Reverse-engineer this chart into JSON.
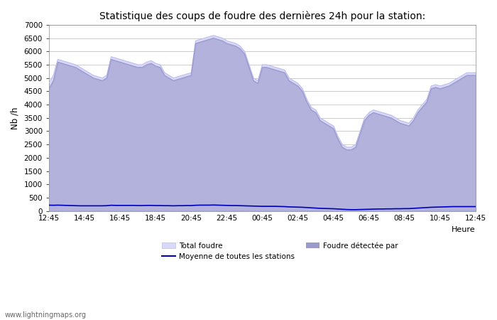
{
  "title": "Statistique des coups de foudre des dernières 24h pour la station:",
  "ylabel": "Nb /h",
  "xlabel": "Heure",
  "watermark": "www.lightningmaps.org",
  "xlim_labels": [
    "12:45",
    "14:45",
    "16:45",
    "18:45",
    "20:45",
    "22:45",
    "00:45",
    "02:45",
    "04:45",
    "06:45",
    "08:45",
    "10:45",
    "12:45"
  ],
  "ylim": [
    0,
    7000
  ],
  "yticks": [
    0,
    500,
    1000,
    1500,
    2000,
    2500,
    3000,
    3500,
    4000,
    4500,
    5000,
    5500,
    6000,
    6500,
    7000
  ],
  "total_foudre_color": "#d8d8f8",
  "total_foudre_edge": "#bbbbee",
  "foudre_detectee_color": "#9999cc",
  "moyenne_color": "#0000bb",
  "background_color": "#ffffff",
  "plot_bg_color": "#ffffff",
  "grid_color": "#cccccc",
  "num_points": 97,
  "total_foudre_y": [
    4800,
    5100,
    5700,
    5650,
    5600,
    5550,
    5500,
    5400,
    5300,
    5200,
    5100,
    5050,
    5000,
    5100,
    5800,
    5750,
    5700,
    5650,
    5600,
    5550,
    5500,
    5500,
    5600,
    5650,
    5550,
    5500,
    5200,
    5100,
    5000,
    5050,
    5100,
    5150,
    5200,
    6400,
    6450,
    6500,
    6550,
    6600,
    6550,
    6500,
    6400,
    6350,
    6300,
    6200,
    6000,
    5500,
    5000,
    4900,
    5500,
    5500,
    5450,
    5400,
    5350,
    5300,
    5000,
    4900,
    4800,
    4600,
    4200,
    3900,
    3800,
    3500,
    3400,
    3300,
    3200,
    2800,
    2500,
    2400,
    2400,
    2500,
    3000,
    3500,
    3700,
    3800,
    3750,
    3700,
    3650,
    3600,
    3500,
    3400,
    3350,
    3300,
    3500,
    3800,
    4000,
    4200,
    4700,
    4750,
    4700,
    4750,
    4800,
    4900,
    5000,
    5100,
    5200,
    5200,
    5200
  ],
  "foudre_detectee_y": [
    4600,
    4900,
    5600,
    5550,
    5500,
    5450,
    5400,
    5300,
    5200,
    5100,
    5000,
    4950,
    4900,
    5000,
    5700,
    5650,
    5600,
    5550,
    5500,
    5450,
    5400,
    5400,
    5500,
    5550,
    5450,
    5400,
    5100,
    5000,
    4900,
    4950,
    5000,
    5050,
    5100,
    6300,
    6350,
    6400,
    6450,
    6500,
    6450,
    6400,
    6300,
    6250,
    6200,
    6100,
    5900,
    5400,
    4900,
    4800,
    5400,
    5400,
    5350,
    5300,
    5250,
    5200,
    4900,
    4800,
    4700,
    4500,
    4100,
    3800,
    3700,
    3400,
    3300,
    3200,
    3100,
    2700,
    2400,
    2300,
    2300,
    2400,
    2900,
    3400,
    3600,
    3700,
    3650,
    3600,
    3550,
    3500,
    3400,
    3300,
    3250,
    3200,
    3400,
    3700,
    3900,
    4100,
    4600,
    4650,
    4600,
    4650,
    4700,
    4800,
    4900,
    5000,
    5100,
    5100,
    5100
  ],
  "moyenne_y": [
    220,
    215,
    220,
    215,
    210,
    205,
    200,
    195,
    195,
    195,
    195,
    195,
    195,
    200,
    215,
    210,
    210,
    210,
    210,
    210,
    205,
    205,
    210,
    210,
    205,
    205,
    200,
    200,
    195,
    200,
    200,
    205,
    205,
    215,
    220,
    220,
    220,
    225,
    220,
    215,
    210,
    205,
    205,
    200,
    195,
    190,
    185,
    180,
    175,
    175,
    175,
    175,
    170,
    165,
    155,
    150,
    145,
    140,
    130,
    120,
    110,
    100,
    95,
    90,
    85,
    75,
    65,
    55,
    50,
    50,
    55,
    60,
    65,
    70,
    75,
    75,
    80,
    80,
    85,
    85,
    90,
    90,
    100,
    110,
    120,
    130,
    140,
    145,
    150,
    155,
    160,
    165,
    165,
    165,
    165,
    165,
    165
  ]
}
